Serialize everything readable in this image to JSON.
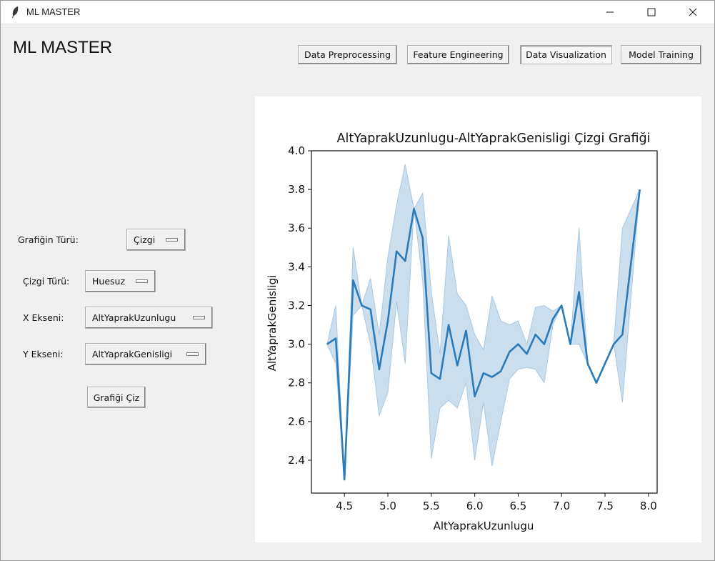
{
  "window": {
    "title": "ML MASTER"
  },
  "app": {
    "brand": "ML MASTER"
  },
  "nav": {
    "preprocessing": "Data Preprocessing",
    "feature_engineering": "Feature Engineering",
    "visualization": "Data Visualization",
    "model_training": "Model Training"
  },
  "controls": {
    "chart_type_label": "Grafiğin Türü:",
    "chart_type_value": "Çizgi",
    "line_type_label": "Çizgi Türü:",
    "line_type_value": "Huesuz",
    "x_axis_label": "X Ekseni:",
    "x_axis_value": "AltYaprakUzunlugu",
    "y_axis_label": "Y Ekseni:",
    "y_axis_value": "AltYaprakGenisligi",
    "draw_button": "Grafiği Çiz"
  },
  "colors": {
    "line": "#2b7bba",
    "band": "#a9c8e2"
  },
  "chart_data": {
    "type": "line",
    "title": "AltYaprakUzunlugu-AltYaprakGenisligi  Çizgi Grafiği",
    "xlabel": "AltYaprakUzunlugu",
    "ylabel": "AltYaprakGenisligi",
    "xlim": [
      4.12,
      8.1
    ],
    "ylim": [
      2.23,
      4.0
    ],
    "xticks": [
      4.5,
      5.0,
      5.5,
      6.0,
      6.5,
      7.0,
      7.5,
      8.0
    ],
    "xtick_labels": [
      "4.5",
      "5.0",
      "5.5",
      "6.0",
      "6.5",
      "7.0",
      "7.5",
      "8.0"
    ],
    "yticks": [
      2.4,
      2.6,
      2.8,
      3.0,
      3.2,
      3.4,
      3.6,
      3.8,
      4.0
    ],
    "ytick_labels": [
      "2.4",
      "2.6",
      "2.8",
      "3.0",
      "3.2",
      "3.4",
      "3.6",
      "3.8",
      "4.0"
    ],
    "grid": false,
    "series": [
      {
        "x": [
          4.3,
          4.4,
          4.5,
          4.6,
          4.7,
          4.8,
          4.9,
          5.0,
          5.1,
          5.2,
          5.3,
          5.4,
          5.5,
          5.6,
          5.7,
          5.8,
          5.9,
          6.0,
          6.1,
          6.2,
          6.3,
          6.4,
          6.5,
          6.6,
          6.7,
          6.8,
          6.9,
          7.0,
          7.1,
          7.2,
          7.3,
          7.4,
          7.6,
          7.7,
          7.9
        ],
        "y": [
          3.0,
          3.03,
          2.3,
          3.33,
          3.2,
          3.18,
          2.87,
          3.12,
          3.48,
          3.43,
          3.7,
          3.55,
          2.85,
          2.82,
          3.1,
          2.89,
          3.07,
          2.73,
          2.85,
          2.83,
          2.86,
          2.96,
          3.0,
          2.95,
          3.05,
          3.0,
          3.13,
          3.2,
          3.0,
          3.27,
          2.9,
          2.8,
          3.0,
          3.05,
          3.8
        ],
        "ci_low": [
          3.0,
          2.9,
          2.3,
          3.15,
          3.2,
          3.0,
          2.63,
          2.75,
          3.22,
          2.9,
          3.7,
          3.33,
          2.41,
          2.67,
          2.71,
          2.67,
          2.8,
          2.4,
          2.7,
          2.37,
          2.6,
          2.82,
          2.87,
          2.88,
          2.87,
          2.8,
          3.1,
          3.2,
          3.0,
          3.0,
          2.9,
          2.8,
          3.0,
          2.7,
          3.8
        ],
        "ci_high": [
          3.0,
          3.2,
          2.3,
          3.5,
          3.2,
          3.34,
          3.05,
          3.45,
          3.72,
          3.93,
          3.7,
          3.78,
          3.27,
          2.95,
          3.56,
          3.26,
          3.2,
          3.05,
          2.97,
          3.25,
          3.12,
          3.1,
          3.12,
          3.0,
          3.19,
          3.2,
          3.17,
          3.2,
          3.0,
          3.6,
          2.9,
          2.8,
          3.0,
          3.6,
          3.8
        ]
      }
    ]
  }
}
